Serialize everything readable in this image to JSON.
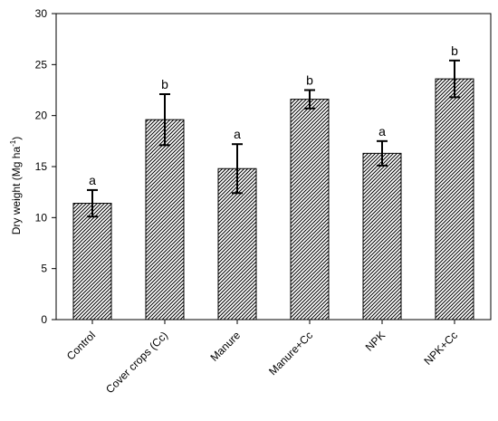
{
  "chart_data": {
    "type": "bar",
    "categories": [
      "Control",
      "Cover crops (Cc)",
      "Manure",
      "Manure+Cc",
      "NPK",
      "NPK+Cc"
    ],
    "values": [
      11.4,
      19.6,
      14.8,
      21.6,
      16.3,
      23.6
    ],
    "errors": [
      1.3,
      2.5,
      2.4,
      0.9,
      1.2,
      1.8
    ],
    "significance_labels": [
      "a",
      "b",
      "a",
      "b",
      "a",
      "b"
    ],
    "ylabel": "Dry weight  (Mg ha",
    "ylabel_superscript": "-1",
    "ylabel_suffix": ")",
    "ylim": [
      0,
      30
    ],
    "yticks": [
      0,
      5,
      10,
      15,
      20,
      25,
      30
    ],
    "grid": false,
    "legend": "none",
    "bar_fill": "diagonal-hatch",
    "colors": {
      "bar_stroke": "#000000",
      "hatch": "#000000",
      "background": "#ffffff"
    }
  }
}
